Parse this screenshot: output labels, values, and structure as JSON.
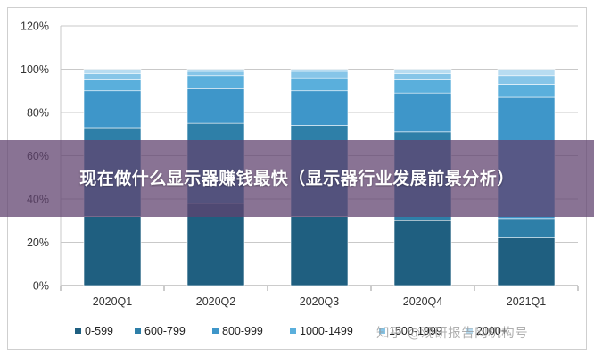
{
  "chart_data": {
    "type": "bar",
    "stacked": true,
    "title": "",
    "xlabel": "",
    "ylabel": "",
    "ylim": [
      0,
      120
    ],
    "yticks": [
      "0%",
      "20%",
      "40%",
      "60%",
      "80%",
      "100%",
      "120%"
    ],
    "categories": [
      "2020Q1",
      "2020Q2",
      "2020Q3",
      "2020Q4",
      "2021Q1"
    ],
    "series": [
      {
        "name": "0-599",
        "color": "#1f5f80",
        "values": [
          32,
          38,
          32,
          30,
          22
        ]
      },
      {
        "name": "600-799",
        "color": "#2e7fa8",
        "values": [
          41,
          37,
          42,
          41,
          9
        ]
      },
      {
        "name": "800-999",
        "color": "#3e96c9",
        "values": [
          17,
          16,
          16,
          18,
          56
        ]
      },
      {
        "name": "1000-1499",
        "color": "#5aafdc",
        "values": [
          5,
          6,
          6,
          6,
          6
        ]
      },
      {
        "name": "1500-1999",
        "color": "#86c5e8",
        "values": [
          3,
          2,
          3,
          3,
          4
        ]
      },
      {
        "name": "2000+",
        "color": "#b8dcf1",
        "values": [
          2,
          1,
          1,
          2,
          3
        ]
      }
    ],
    "grid": true,
    "legend_position": "bottom"
  },
  "overlay": {
    "title": "现在做什么显示器赚钱最快（显示器行业发展前景分析）"
  },
  "watermark": {
    "text": "知乎 @观研报告网机构号"
  }
}
